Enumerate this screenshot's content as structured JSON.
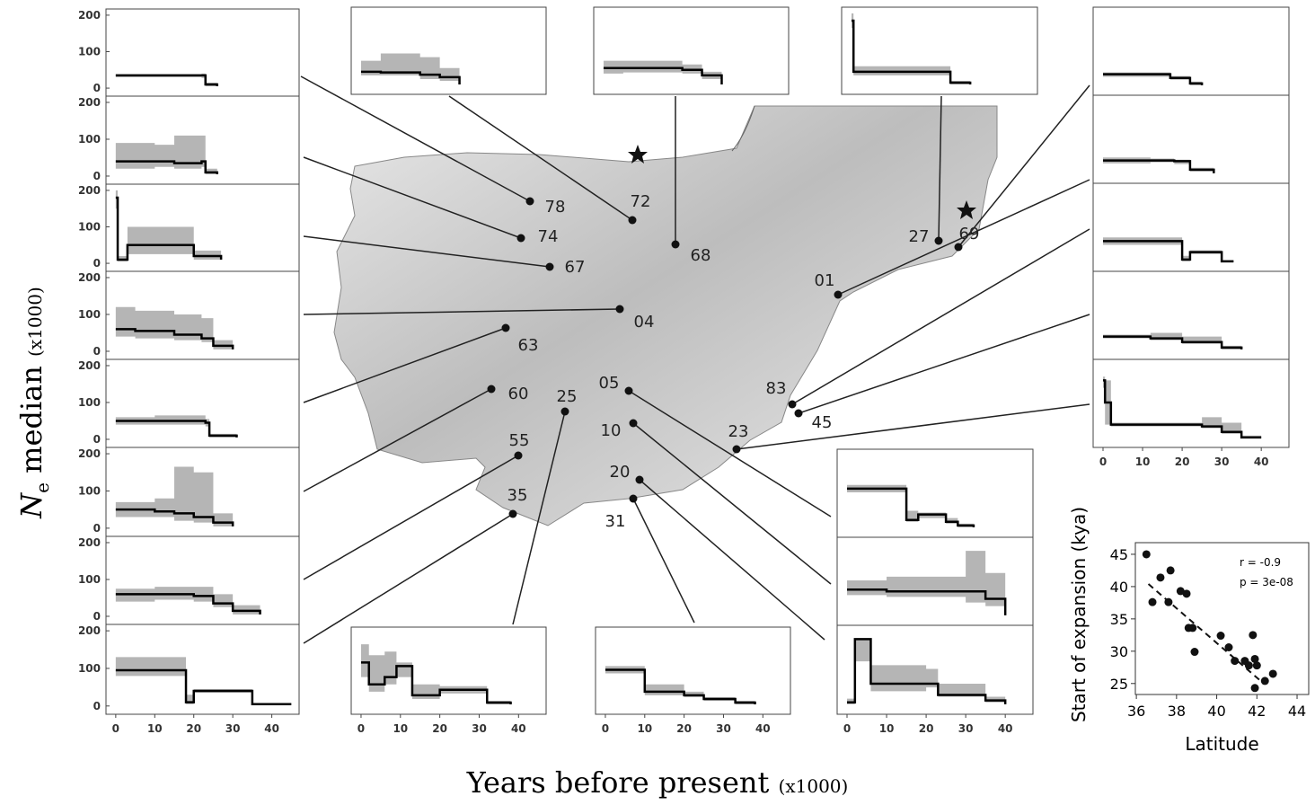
{
  "figure": {
    "y_label": {
      "symbol": "N",
      "subscript": "e",
      "word": "median",
      "unit": "(x1000)"
    },
    "x_label": {
      "text": "Years before present",
      "unit": "(x1000)"
    }
  },
  "map": {
    "sites": [
      "78",
      "74",
      "67",
      "04",
      "63",
      "60",
      "55",
      "35",
      "72",
      "68",
      "27",
      "69",
      "01",
      "83",
      "45",
      "23",
      "25",
      "31",
      "05",
      "10",
      "20"
    ]
  },
  "chart_data": [
    {
      "type": "step",
      "xlim": [
        -2.5,
        47
      ],
      "ylim": [
        -22,
        217
      ],
      "yticks": [
        0,
        100,
        200
      ],
      "x": [
        0,
        22,
        23,
        26
      ],
      "values": [
        35,
        35,
        10,
        5
      ],
      "lower": [
        30,
        28,
        5,
        2
      ],
      "upper": [
        38,
        40,
        15,
        8
      ]
    },
    {
      "type": "step",
      "xlim": [
        -2.5,
        47
      ],
      "ylim": [
        -22,
        217
      ],
      "yticks": [
        0,
        100,
        200
      ],
      "x": [
        0,
        10,
        15,
        22,
        23,
        26
      ],
      "values": [
        40,
        40,
        35,
        40,
        10,
        5
      ],
      "lower": [
        20,
        25,
        20,
        25,
        5,
        2
      ],
      "upper": [
        90,
        85,
        110,
        110,
        20,
        8
      ]
    },
    {
      "type": "step",
      "xlim": [
        -2.5,
        47
      ],
      "ylim": [
        -22,
        217
      ],
      "yticks": [
        0,
        100,
        200
      ],
      "x": [
        0,
        0.5,
        3,
        20,
        27
      ],
      "values": [
        180,
        10,
        50,
        20,
        10
      ],
      "lower": [
        150,
        5,
        25,
        10,
        5
      ],
      "upper": [
        200,
        20,
        100,
        35,
        15
      ]
    },
    {
      "type": "step",
      "xlim": [
        -2.5,
        47
      ],
      "ylim": [
        -22,
        217
      ],
      "yticks": [
        0,
        100,
        200
      ],
      "x": [
        0,
        5,
        15,
        22,
        25,
        30
      ],
      "values": [
        60,
        55,
        45,
        35,
        15,
        5
      ],
      "lower": [
        40,
        35,
        30,
        25,
        5,
        2
      ],
      "upper": [
        120,
        110,
        100,
        90,
        30,
        8
      ]
    },
    {
      "type": "step",
      "xlim": [
        -2.5,
        47
      ],
      "ylim": [
        -22,
        217
      ],
      "yticks": [
        0,
        100,
        200
      ],
      "x": [
        0,
        10,
        23,
        24,
        31
      ],
      "values": [
        50,
        50,
        45,
        10,
        5
      ],
      "lower": [
        40,
        40,
        35,
        5,
        2
      ],
      "upper": [
        60,
        65,
        55,
        15,
        8
      ]
    },
    {
      "type": "step",
      "xlim": [
        -2.5,
        47
      ],
      "ylim": [
        -22,
        217
      ],
      "yticks": [
        0,
        100,
        200
      ],
      "x": [
        0,
        10,
        15,
        20,
        25,
        30
      ],
      "values": [
        50,
        45,
        40,
        30,
        15,
        5
      ],
      "lower": [
        30,
        30,
        20,
        15,
        5,
        2
      ],
      "upper": [
        70,
        80,
        165,
        150,
        40,
        8
      ]
    },
    {
      "type": "step",
      "xlim": [
        -2.5,
        47
      ],
      "ylim": [
        -22,
        217
      ],
      "yticks": [
        0,
        100,
        200
      ],
      "x": [
        0,
        10,
        20,
        25,
        30,
        37
      ],
      "values": [
        60,
        60,
        55,
        35,
        15,
        5
      ],
      "lower": [
        40,
        45,
        40,
        25,
        5,
        2
      ],
      "upper": [
        75,
        80,
        80,
        60,
        30,
        8
      ]
    },
    {
      "type": "step",
      "xlim": [
        -2.5,
        47
      ],
      "ylim": [
        -22,
        217
      ],
      "yticks": [
        0,
        100,
        200
      ],
      "xticks": [
        0,
        10,
        20,
        30,
        40
      ],
      "x": [
        0,
        16,
        18,
        20,
        35,
        45
      ],
      "values": [
        95,
        95,
        10,
        40,
        5,
        5
      ],
      "lower": [
        80,
        80,
        5,
        35,
        3,
        3
      ],
      "upper": [
        130,
        130,
        30,
        45,
        8,
        8
      ]
    },
    {
      "type": "step",
      "xlim": [
        -2.5,
        47
      ],
      "ylim": [
        -22,
        217
      ],
      "x": [
        0,
        5,
        15,
        20,
        25
      ],
      "values": [
        40,
        38,
        32,
        25,
        5
      ],
      "lower": [
        30,
        30,
        20,
        15,
        2
      ],
      "upper": [
        70,
        90,
        80,
        50,
        8
      ]
    },
    {
      "type": "step",
      "xlim": [
        -2.5,
        47
      ],
      "ylim": [
        -22,
        217
      ],
      "x": [
        0,
        5,
        20,
        25,
        30
      ],
      "values": [
        50,
        50,
        45,
        30,
        5
      ],
      "lower": [
        35,
        38,
        35,
        20,
        2
      ],
      "upper": [
        70,
        70,
        60,
        40,
        8
      ]
    },
    {
      "type": "step",
      "xlim": [
        -2.5,
        47
      ],
      "ylim": [
        -22,
        217
      ],
      "x": [
        0,
        0.5,
        17,
        25,
        30
      ],
      "values": [
        180,
        40,
        40,
        10,
        5
      ],
      "lower": [
        160,
        30,
        30,
        5,
        2
      ],
      "upper": [
        200,
        55,
        55,
        15,
        8
      ]
    },
    {
      "type": "step",
      "xlim": [
        -2.5,
        47
      ],
      "ylim": [
        -22,
        217
      ],
      "x": [
        0,
        15,
        17,
        22,
        25
      ],
      "values": [
        35,
        35,
        25,
        10,
        5
      ],
      "lower": [
        28,
        28,
        20,
        5,
        2
      ],
      "upper": [
        40,
        40,
        30,
        15,
        8
      ]
    },
    {
      "type": "step",
      "xlim": [
        -2.5,
        47
      ],
      "ylim": [
        -22,
        217
      ],
      "x": [
        0,
        12,
        18,
        22,
        28
      ],
      "values": [
        40,
        40,
        38,
        15,
        5
      ],
      "lower": [
        32,
        35,
        30,
        10,
        2
      ],
      "upper": [
        48,
        45,
        42,
        20,
        8
      ]
    },
    {
      "type": "step",
      "xlim": [
        -2.5,
        47
      ],
      "ylim": [
        -22,
        217
      ],
      "x": [
        0,
        18,
        20,
        22,
        30,
        33
      ],
      "values": [
        60,
        60,
        10,
        30,
        5,
        5
      ],
      "lower": [
        50,
        50,
        5,
        25,
        3,
        3
      ],
      "upper": [
        70,
        70,
        20,
        35,
        8,
        8
      ]
    },
    {
      "type": "step",
      "xlim": [
        -2.5,
        47
      ],
      "ylim": [
        -22,
        217
      ],
      "x": [
        0,
        12,
        20,
        30,
        35
      ],
      "values": [
        40,
        35,
        25,
        10,
        5
      ],
      "lower": [
        35,
        30,
        20,
        5,
        2
      ],
      "upper": [
        45,
        50,
        40,
        15,
        8
      ]
    },
    {
      "type": "step",
      "xlim": [
        -2.5,
        47
      ],
      "ylim": [
        -22,
        217
      ],
      "xticks": [
        0,
        10,
        20,
        30,
        40
      ],
      "x": [
        0,
        0.5,
        2,
        25,
        30,
        35,
        40
      ],
      "values": [
        160,
        100,
        40,
        35,
        20,
        5,
        5
      ],
      "lower": [
        140,
        40,
        35,
        30,
        15,
        3,
        3
      ],
      "upper": [
        170,
        160,
        45,
        60,
        45,
        10,
        8
      ]
    },
    {
      "type": "step",
      "xlim": [
        -2.5,
        47
      ],
      "ylim": [
        -22,
        217
      ],
      "xticks": [
        0,
        10,
        20,
        30,
        40
      ],
      "x": [
        0,
        2,
        6,
        9,
        13,
        20,
        32,
        38
      ],
      "values": [
        120,
        60,
        80,
        110,
        30,
        45,
        10,
        5
      ],
      "lower": [
        80,
        40,
        60,
        80,
        20,
        35,
        5,
        2
      ],
      "upper": [
        170,
        140,
        150,
        120,
        60,
        55,
        15,
        8
      ]
    },
    {
      "type": "step",
      "xlim": [
        -2.5,
        47
      ],
      "ylim": [
        -22,
        217
      ],
      "xticks": [
        0,
        10,
        20,
        30,
        40
      ],
      "x": [
        0,
        9,
        10,
        20,
        25,
        33,
        38
      ],
      "values": [
        100,
        100,
        40,
        30,
        20,
        10,
        5
      ],
      "lower": [
        90,
        90,
        30,
        25,
        15,
        5,
        2
      ],
      "upper": [
        110,
        110,
        60,
        40,
        25,
        15,
        8
      ]
    },
    {
      "type": "step",
      "xlim": [
        -2.5,
        47
      ],
      "ylim": [
        -22,
        217
      ],
      "x": [
        0,
        3,
        15,
        18,
        25,
        28,
        32
      ],
      "values": [
        110,
        110,
        25,
        40,
        20,
        10,
        5
      ],
      "lower": [
        100,
        100,
        20,
        30,
        15,
        5,
        2
      ],
      "upper": [
        120,
        120,
        50,
        45,
        30,
        15,
        8
      ]
    },
    {
      "type": "step",
      "xlim": [
        -2.5,
        47
      ],
      "ylim": [
        -22,
        217
      ],
      "x": [
        0,
        10,
        30,
        35,
        40
      ],
      "values": [
        75,
        70,
        70,
        50,
        5
      ],
      "lower": [
        60,
        55,
        40,
        30,
        2
      ],
      "upper": [
        100,
        110,
        180,
        120,
        8
      ]
    },
    {
      "type": "step",
      "xlim": [
        -2.5,
        47
      ],
      "ylim": [
        -22,
        217
      ],
      "xticks": [
        0,
        10,
        20,
        30,
        40
      ],
      "x": [
        0,
        2,
        6,
        20,
        23,
        35,
        40
      ],
      "values": [
        10,
        180,
        60,
        60,
        30,
        15,
        5
      ],
      "lower": [
        5,
        120,
        40,
        50,
        25,
        10,
        2
      ],
      "upper": [
        20,
        180,
        110,
        100,
        60,
        25,
        8
      ]
    },
    {
      "type": "scatter",
      "x_label": "Latitude",
      "y_label": "Start of expansion (kya)",
      "annotations": [
        "r = -0.9",
        "p = 3e-08"
      ],
      "xlim": [
        35.95,
        44.58
      ],
      "ylim": [
        23.3,
        46.8
      ],
      "xticks": [
        36,
        38,
        40,
        42,
        44
      ],
      "yticks": [
        25,
        30,
        35,
        40,
        45
      ],
      "x": [
        36.5,
        36.8,
        37.2,
        37.7,
        37.6,
        38.2,
        38.5,
        38.6,
        38.8,
        38.9,
        40.2,
        40.6,
        40.9,
        41.4,
        41.8,
        41.9,
        42.0,
        41.9,
        42.4,
        42.8,
        41.6
      ],
      "values": [
        45,
        37.6,
        41.4,
        42.5,
        37.6,
        39.3,
        38.9,
        33.6,
        33.6,
        29.9,
        32.4,
        30.6,
        28.5,
        28.5,
        32.5,
        28.8,
        27.8,
        24.3,
        25.4,
        26.5,
        27.8
      ],
      "trend": {
        "x": [
          36.6,
          42.3
        ],
        "values": [
          40.4,
          25.1
        ]
      }
    }
  ]
}
